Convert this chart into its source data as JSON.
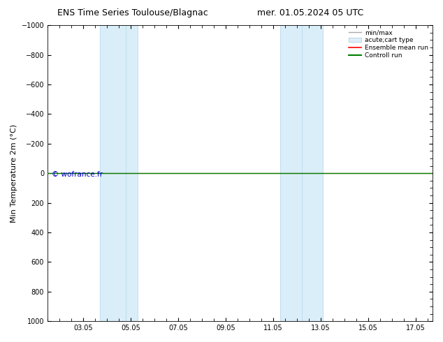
{
  "title_left": "ENS Time Series Toulouse/Blagnac",
  "title_right": "mer. 01.05.2024 05 UTC",
  "ylabel": "Min Temperature 2m (°C)",
  "watermark": "© wofrance.fr",
  "watermark_color": "#0000cc",
  "ylim_top": -1000,
  "ylim_bottom": 1000,
  "yticks": [
    -1000,
    -800,
    -600,
    -400,
    -200,
    0,
    200,
    400,
    600,
    800,
    1000
  ],
  "xtick_labels": [
    "03.05",
    "05.05",
    "07.05",
    "09.05",
    "11.05",
    "13.05",
    "15.05",
    "17.05"
  ],
  "xtick_days": [
    3,
    5,
    7,
    9,
    11,
    13,
    15,
    17
  ],
  "blue_bands": [
    {
      "start_day": 4.0,
      "end_day": 5.0
    },
    {
      "start_day": 5.17,
      "end_day": 5.71
    },
    {
      "start_day": 11.17,
      "end_day": 12.17
    },
    {
      "start_day": 12.17,
      "end_day": 13.17
    }
  ],
  "band_color": "#daeef9",
  "band_edge_color": "#b8d9ec",
  "line_colors": {
    "minmax": "#aaaaaa",
    "ensemble_mean": "#ff0000",
    "control": "#008000"
  },
  "legend_labels": [
    "min/max",
    "acute;cart type",
    "Ensemble mean run",
    "Controll run"
  ],
  "bg_color": "#ffffff",
  "plot_bg_color": "#ffffff",
  "axis_color": "#000000",
  "title_fontsize": 9,
  "tick_fontsize": 7,
  "ylabel_fontsize": 8
}
